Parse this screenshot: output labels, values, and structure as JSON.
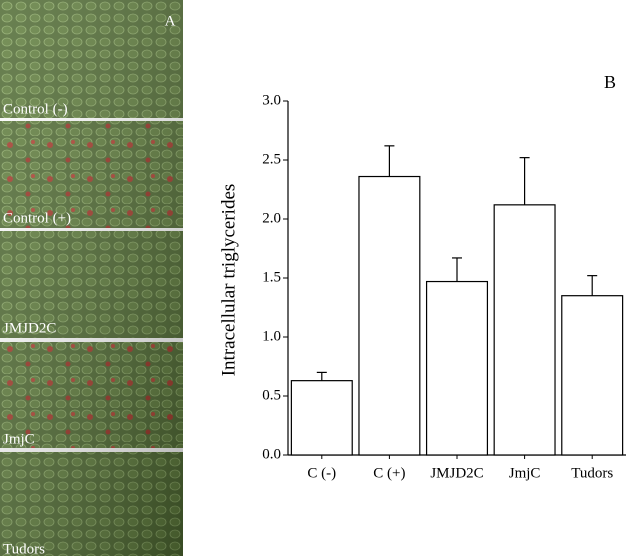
{
  "panel_a": {
    "label": "A",
    "images": [
      "Control (-)",
      "Control (+)",
      "JMJD2C",
      "JmjC",
      "Tudors"
    ]
  },
  "chart_data": {
    "type": "bar",
    "panel_label": "B",
    "y_label": "Intracellular triglycerides",
    "categories": [
      "C (-)",
      "C (+)",
      "JMJD2C",
      "JmjC",
      "Tudors"
    ],
    "values": [
      0.63,
      2.36,
      1.47,
      2.12,
      1.35
    ],
    "errors": [
      0.07,
      0.26,
      0.2,
      0.4,
      0.17
    ],
    "color": "#ffffff",
    "ylim": [
      0,
      3
    ],
    "yticks": [
      {
        "value": 0,
        "label": "0.0"
      },
      0.5,
      {
        "value": 1,
        "label": "1.0"
      },
      1.5,
      {
        "value": 2,
        "label": "2.0"
      },
      2.5,
      {
        "value": 3,
        "label": "3.0"
      }
    ],
    "grid": false
  }
}
